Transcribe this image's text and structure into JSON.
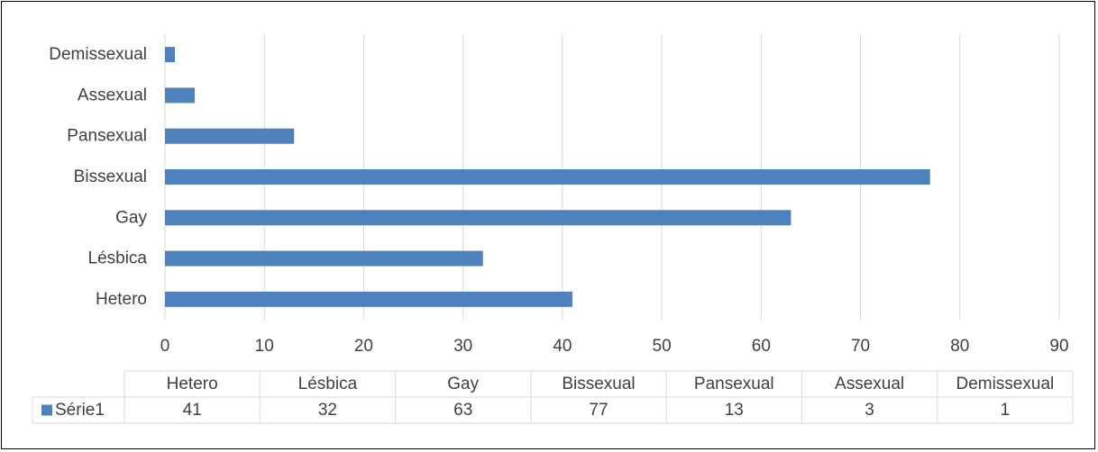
{
  "chart_data": {
    "type": "bar",
    "orientation": "horizontal",
    "categories": [
      "Hetero",
      "Lésbica",
      "Gay",
      "Bissexual",
      "Pansexual",
      "Assexual",
      "Demissexual"
    ],
    "series": [
      {
        "name": "Série1",
        "values": [
          41,
          32,
          63,
          77,
          13,
          3,
          1
        ],
        "color": "#4F81BD"
      }
    ],
    "xlim": [
      0,
      90
    ],
    "xticks": [
      0,
      10,
      20,
      30,
      40,
      50,
      60,
      70,
      80,
      90
    ],
    "grid": true,
    "data_table": true
  }
}
